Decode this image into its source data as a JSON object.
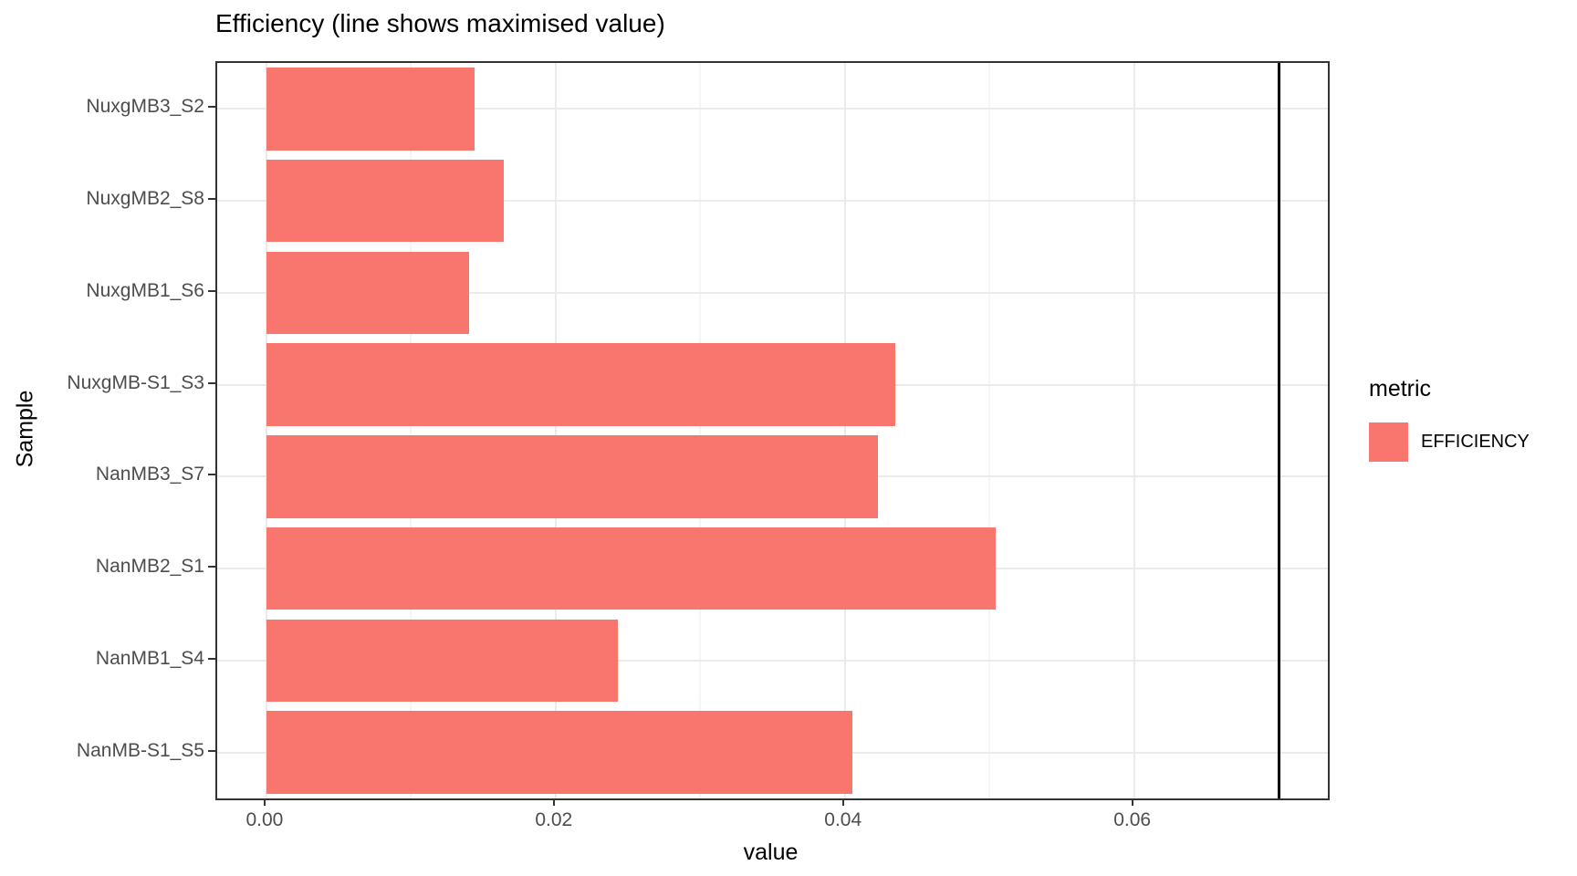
{
  "title": "Efficiency (line shows maximised value)",
  "axes": {
    "x_title": "value",
    "y_title": "Sample"
  },
  "legend": {
    "title": "metric",
    "items": [
      {
        "label": "EFFICIENCY",
        "color": "#F8766D"
      }
    ]
  },
  "colors": {
    "bar_fill": "#F8766D",
    "panel_border": "#333333",
    "grid_major": "#EBEBEB",
    "grid_minor": "#F5F5F5",
    "tick_label": "#4D4D4D",
    "reference_line": "#000000"
  },
  "chart_data": {
    "type": "bar",
    "orientation": "horizontal",
    "title": "Efficiency (line shows maximised value)",
    "xlabel": "value",
    "ylabel": "Sample",
    "categories": [
      "NuxgMB3_S2",
      "NuxgMB2_S8",
      "NuxgMB1_S6",
      "NuxgMB-S1_S3",
      "NanMB3_S7",
      "NanMB2_S1",
      "NanMB1_S4",
      "NanMB-S1_S5"
    ],
    "series": [
      {
        "name": "EFFICIENCY",
        "color": "#F8766D",
        "values": [
          0.0144,
          0.0164,
          0.014,
          0.0435,
          0.0423,
          0.0504,
          0.0243,
          0.0405
        ]
      }
    ],
    "reference_line": {
      "orientation": "vertical",
      "value": 0.07,
      "color": "#000000",
      "meaning": "maximised value"
    },
    "xlim": [
      -0.0034,
      0.0734
    ],
    "x_ticks": [
      {
        "value": 0.0,
        "label": "0.00"
      },
      {
        "value": 0.02,
        "label": "0.02"
      },
      {
        "value": 0.04,
        "label": "0.04"
      },
      {
        "value": 0.06,
        "label": "0.06"
      }
    ],
    "x_minor_ticks": [
      0.01,
      0.03,
      0.05,
      0.07
    ],
    "grid": true,
    "legend_position": "right",
    "bar_width_fraction": 0.9
  }
}
